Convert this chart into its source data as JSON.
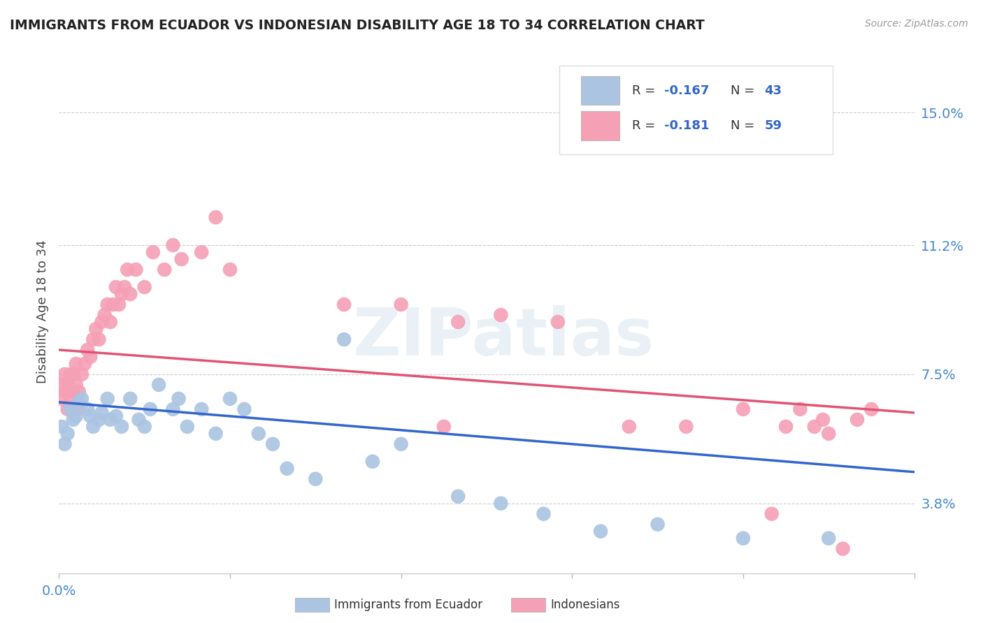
{
  "title": "IMMIGRANTS FROM ECUADOR VS INDONESIAN DISABILITY AGE 18 TO 34 CORRELATION CHART",
  "source": "Source: ZipAtlas.com",
  "ylabel": "Disability Age 18 to 34",
  "yticks": [
    0.038,
    0.075,
    0.112,
    0.15
  ],
  "ytick_labels": [
    "3.8%",
    "7.5%",
    "11.2%",
    "15.0%"
  ],
  "xlim": [
    0.0,
    0.3
  ],
  "ylim": [
    0.018,
    0.168
  ],
  "ecuador_R": -0.167,
  "ecuador_N": 43,
  "indonesian_R": -0.181,
  "indonesian_N": 59,
  "ecuador_color": "#aac4e2",
  "indonesian_color": "#f5a0b5",
  "ecuador_line_color": "#3366cc",
  "indonesian_line_color": "#e05575",
  "ecuador_label": "Immigrants from Ecuador",
  "indonesian_label": "Indonesians",
  "watermark": "ZIPatlas",
  "ecuador_x": [
    0.001,
    0.002,
    0.003,
    0.004,
    0.005,
    0.006,
    0.007,
    0.008,
    0.01,
    0.011,
    0.012,
    0.014,
    0.015,
    0.017,
    0.018,
    0.02,
    0.022,
    0.025,
    0.028,
    0.03,
    0.032,
    0.035,
    0.04,
    0.042,
    0.045,
    0.05,
    0.055,
    0.06,
    0.065,
    0.07,
    0.075,
    0.08,
    0.09,
    0.1,
    0.11,
    0.12,
    0.14,
    0.155,
    0.17,
    0.19,
    0.21,
    0.24,
    0.27
  ],
  "ecuador_y": [
    0.06,
    0.055,
    0.058,
    0.065,
    0.062,
    0.063,
    0.067,
    0.068,
    0.065,
    0.063,
    0.06,
    0.062,
    0.064,
    0.068,
    0.062,
    0.063,
    0.06,
    0.068,
    0.062,
    0.06,
    0.065,
    0.072,
    0.065,
    0.068,
    0.06,
    0.065,
    0.058,
    0.068,
    0.065,
    0.058,
    0.055,
    0.048,
    0.045,
    0.085,
    0.05,
    0.055,
    0.04,
    0.038,
    0.035,
    0.03,
    0.032,
    0.028,
    0.028
  ],
  "indonesian_x": [
    0.001,
    0.001,
    0.002,
    0.002,
    0.003,
    0.003,
    0.004,
    0.004,
    0.005,
    0.005,
    0.006,
    0.006,
    0.007,
    0.007,
    0.008,
    0.009,
    0.01,
    0.011,
    0.012,
    0.013,
    0.014,
    0.015,
    0.016,
    0.017,
    0.018,
    0.019,
    0.02,
    0.021,
    0.022,
    0.023,
    0.024,
    0.025,
    0.027,
    0.03,
    0.033,
    0.037,
    0.04,
    0.043,
    0.05,
    0.055,
    0.06,
    0.1,
    0.12,
    0.135,
    0.14,
    0.155,
    0.175,
    0.2,
    0.22,
    0.24,
    0.25,
    0.255,
    0.26,
    0.265,
    0.268,
    0.27,
    0.275,
    0.28,
    0.285
  ],
  "indonesian_y": [
    0.068,
    0.072,
    0.07,
    0.075,
    0.065,
    0.072,
    0.068,
    0.075,
    0.07,
    0.075,
    0.072,
    0.078,
    0.065,
    0.07,
    0.075,
    0.078,
    0.082,
    0.08,
    0.085,
    0.088,
    0.085,
    0.09,
    0.092,
    0.095,
    0.09,
    0.095,
    0.1,
    0.095,
    0.098,
    0.1,
    0.105,
    0.098,
    0.105,
    0.1,
    0.11,
    0.105,
    0.112,
    0.108,
    0.11,
    0.12,
    0.105,
    0.095,
    0.095,
    0.06,
    0.09,
    0.092,
    0.09,
    0.06,
    0.06,
    0.065,
    0.035,
    0.06,
    0.065,
    0.06,
    0.062,
    0.058,
    0.025,
    0.062,
    0.065
  ],
  "ecuador_line_x0": 0.0,
  "ecuador_line_y0": 0.067,
  "ecuador_line_x1": 0.3,
  "ecuador_line_y1": 0.047,
  "indo_line_x0": 0.0,
  "indo_line_y0": 0.082,
  "indo_line_x1": 0.3,
  "indo_line_y1": 0.064
}
